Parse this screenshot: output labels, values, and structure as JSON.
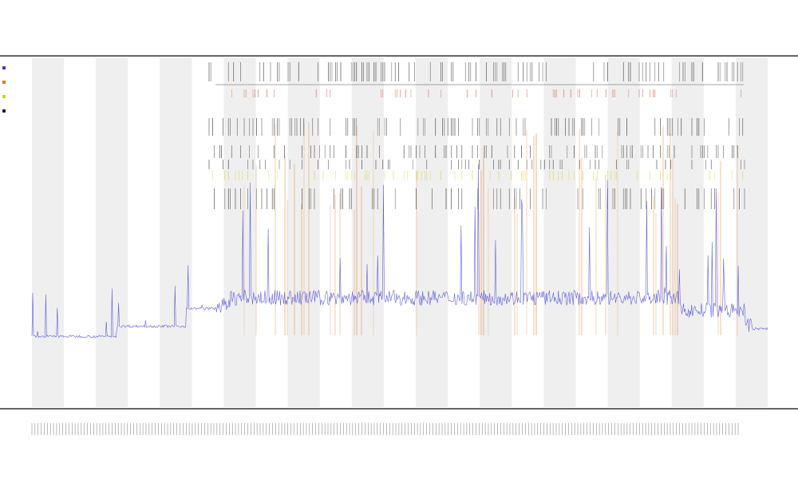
{
  "chart_data": {
    "type": "line",
    "title": "",
    "subtitle_1": "",
    "subtitle_2": "",
    "xlabel": "",
    "ylabel": "",
    "grid": false,
    "legend_position": "top-left",
    "band_count": 23,
    "series": [
      {
        "name": "",
        "color": "#3b3bd9",
        "style": "continuous-line",
        "baseline_segments": [
          {
            "from": 0.0,
            "to": 0.115,
            "level": 0.09
          },
          {
            "from": 0.115,
            "to": 0.21,
            "level": 0.13
          },
          {
            "from": 0.21,
            "to": 0.27,
            "level": 0.2
          },
          {
            "from": 0.27,
            "to": 0.88,
            "level": 0.23
          },
          {
            "from": 0.88,
            "to": 0.97,
            "level": 0.18
          },
          {
            "from": 0.97,
            "to": 1.0,
            "level": 0.12
          }
        ]
      },
      {
        "name": "",
        "color": "#e07a1f",
        "style": "vertical-spikes"
      },
      {
        "name": "",
        "color": "#d8d020",
        "style": "event-ticks"
      },
      {
        "name": "",
        "color": "#222222",
        "style": "event-ticks"
      }
    ],
    "tracks": [
      {
        "label": "",
        "color": "#333333"
      },
      {
        "label": "",
        "color": "#d24a2a"
      }
    ],
    "tick_label_count": 230
  },
  "colors": {
    "band": "#efefef",
    "axis": "#333333",
    "line": "#3b3bd9",
    "spike": "#e07a1f",
    "yellow": "#d8d020",
    "tick": "#222222",
    "red_tick": "#d24a2a"
  }
}
